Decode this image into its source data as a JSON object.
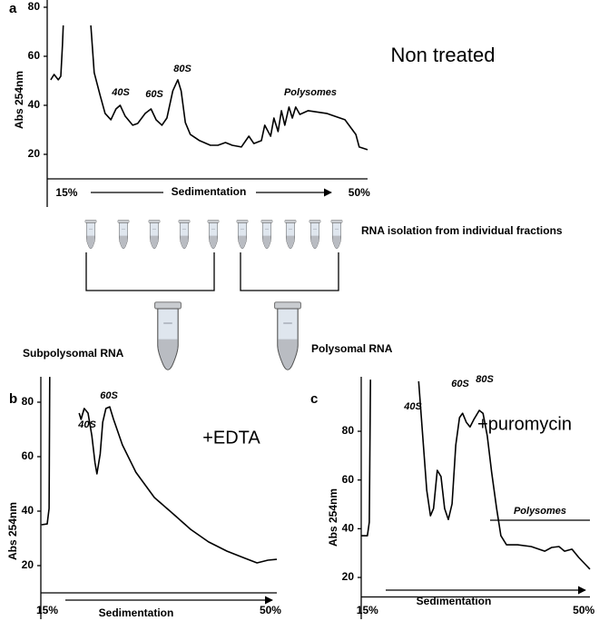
{
  "chart_data": [
    {
      "type": "line",
      "panel": "a",
      "title": "Non treated",
      "y_label": "Abs 254nm",
      "x_label": "Sedimentation",
      "annotations": [
        "40S",
        "60S",
        "80S",
        "Polysomes"
      ],
      "color": "#000000",
      "xlim": [
        13,
        51
      ],
      "ylim": [
        10,
        80
      ],
      "xticks": [
        {
          "value": 15,
          "label": "15%"
        },
        {
          "value": 50,
          "label": "50%"
        }
      ],
      "yticks": [
        20,
        40,
        60,
        80
      ],
      "x": [
        13.1,
        13.5,
        14.0,
        14.3,
        14.5,
        14.6,
        16.0,
        17.9,
        18.3,
        19.0,
        19.6,
        20.3,
        20.9,
        21.4,
        22.0,
        22.9,
        23.5,
        24.4,
        25.1,
        25.7,
        26.4,
        27.0,
        27.7,
        28.3,
        28.7,
        29.2,
        29.8,
        30.9,
        32.2,
        33.1,
        34.0,
        34.8,
        35.9,
        36.8,
        37.4,
        38.3,
        38.7,
        39.4,
        39.8,
        40.3,
        40.7,
        41.1,
        41.6,
        42.0,
        42.4,
        42.9,
        43.9,
        46.1,
        48.3,
        49.6,
        50.0,
        51.0
      ],
      "values": [
        50.4,
        52.6,
        50.4,
        51.9,
        64.4,
        72.6,
        null,
        72.6,
        53.3,
        44.1,
        36.7,
        34.1,
        38.5,
        40.0,
        35.6,
        31.9,
        32.6,
        36.7,
        38.5,
        34.1,
        31.9,
        34.8,
        45.9,
        50.4,
        45.9,
        33.0,
        28.1,
        25.6,
        23.7,
        23.7,
        24.8,
        23.7,
        23.0,
        27.4,
        24.4,
        25.6,
        31.9,
        27.4,
        34.8,
        29.3,
        37.8,
        31.9,
        39.3,
        34.8,
        39.3,
        36.3,
        37.8,
        36.7,
        34.1,
        28.1,
        23.0,
        21.9
      ]
    },
    {
      "type": "line",
      "panel": "b",
      "title": "+EDTA",
      "y_label": "Abs 254nm",
      "x_label": "Sedimentation",
      "annotations": [
        "40S",
        "60S"
      ],
      "color": "#000000",
      "xlim": [
        14,
        51
      ],
      "ylim": [
        10,
        90
      ],
      "xticks": [
        {
          "value": 15,
          "label": "15%"
        },
        {
          "value": 50,
          "label": "50%"
        }
      ],
      "yticks": [
        20,
        40,
        60,
        80
      ],
      "x": [
        14.1,
        15.0,
        15.3,
        15.4,
        18.0,
        20.0,
        20.3,
        20.8,
        21.4,
        22.0,
        22.5,
        22.8,
        23.3,
        23.7,
        24.2,
        24.8,
        25.4,
        26.8,
        28.9,
        31.8,
        34.6,
        37.5,
        40.3,
        43.2,
        46.0,
        47.9,
        49.6,
        51.0
      ],
      "values": [
        35.0,
        35.3,
        41.0,
        89.3,
        null,
        76.0,
        73.7,
        77.7,
        76.0,
        67.7,
        57.7,
        53.7,
        61.0,
        72.7,
        77.7,
        78.3,
        73.7,
        64.3,
        54.3,
        45.0,
        39.3,
        33.3,
        28.7,
        25.3,
        22.7,
        21.0,
        22.0,
        22.3
      ]
    },
    {
      "type": "line",
      "panel": "c",
      "title": "+puromycin",
      "y_label": "Abs 254nm",
      "x_label": "Sedimentation",
      "annotations": [
        "40S",
        "60S",
        "80S",
        "Polysomes"
      ],
      "color": "#000000",
      "xlim": [
        14,
        51
      ],
      "ylim": [
        12,
        102
      ],
      "xticks": [
        {
          "value": 15,
          "label": "15%"
        },
        {
          "value": 50,
          "label": "50%"
        }
      ],
      "yticks": [
        20,
        40,
        60,
        80
      ],
      "x": [
        14.0,
        15.0,
        15.3,
        15.5,
        20.0,
        23.3,
        24.6,
        25.2,
        25.7,
        26.3,
        26.9,
        27.5,
        28.1,
        28.7,
        29.3,
        29.9,
        30.4,
        31.0,
        31.6,
        32.2,
        33.1,
        33.7,
        34.4,
        35.1,
        35.9,
        36.6,
        37.5,
        39.3,
        41.5,
        43.7,
        44.8,
        46.0,
        46.9,
        48.1,
        49.2,
        51.0
      ],
      "values": [
        37.1,
        37.1,
        42.7,
        101.2,
        null,
        100.5,
        55.8,
        45.3,
        48.3,
        64.0,
        61.4,
        48.3,
        43.8,
        50.2,
        74.4,
        85.6,
        87.4,
        83.7,
        81.8,
        84.8,
        88.6,
        87.4,
        78.1,
        63.2,
        48.3,
        37.1,
        33.4,
        33.4,
        32.7,
        30.8,
        32.3,
        32.7,
        30.8,
        31.6,
        28.2,
        23.4
      ]
    }
  ],
  "diagram": {
    "step": "RNA isolation from individual fractions",
    "pools": [
      "Subpolysomal RNA",
      "Polysomal RNA"
    ]
  }
}
